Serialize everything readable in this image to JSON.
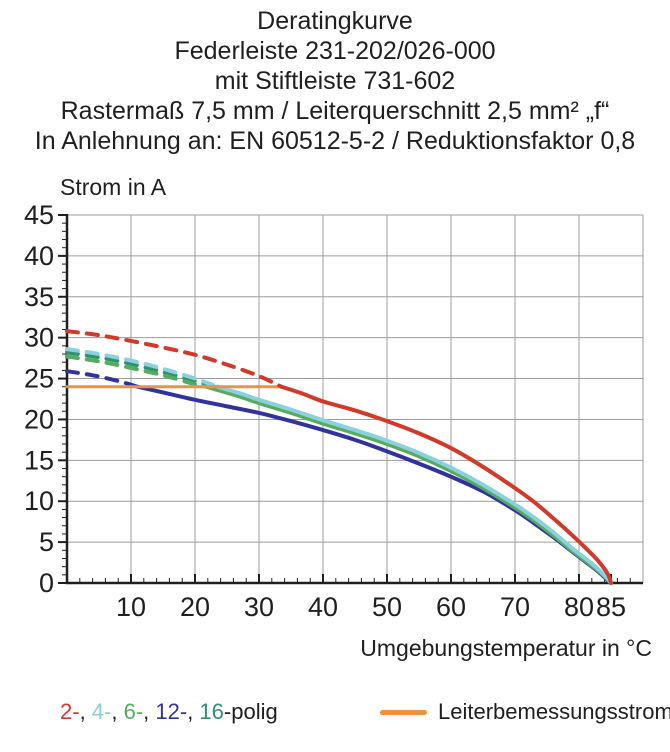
{
  "chart_data": {
    "type": "line",
    "title_lines": [
      "Deratingkurve",
      "Federleiste 231-202/026-000",
      "mit Stiftleiste 731-602",
      "Rastermaß 7,5 mm / Leiterquerschnitt 2,5 mm² „f“",
      "In Anlehnung an: EN 60512-5-2 / Reduktionsfaktor 0,8"
    ],
    "ylabel": "Strom in A",
    "xlabel": "Umgebungstemperatur in °C",
    "xlim": [
      0,
      90
    ],
    "ylim": [
      0,
      45
    ],
    "x_major_ticks": [
      10,
      20,
      30,
      40,
      50,
      60,
      70,
      80,
      85
    ],
    "y_major_ticks": [
      0,
      5,
      10,
      15,
      20,
      25,
      30,
      35,
      40,
      45
    ],
    "x_minor_step": 2,
    "y_minor_step": 1,
    "grid": true,
    "legend_position": "bottom",
    "grid_color": "#9c9c9c",
    "axis_color": "#1f1f1f",
    "series": [
      {
        "name": "12-polig",
        "color": "#32329e",
        "dashed": [
          [
            0,
            25.9
          ],
          [
            4,
            25.4
          ],
          [
            8,
            24.7
          ],
          [
            11,
            24
          ]
        ],
        "solid": [
          [
            11,
            24
          ],
          [
            15,
            23.3
          ],
          [
            20,
            22.4
          ],
          [
            25,
            21.6
          ],
          [
            30,
            20.8
          ],
          [
            35,
            19.8
          ],
          [
            40,
            18.7
          ],
          [
            45,
            17.5
          ],
          [
            50,
            16.1
          ],
          [
            55,
            14.6
          ],
          [
            60,
            13
          ],
          [
            65,
            11.2
          ],
          [
            70,
            8.9
          ],
          [
            73,
            7.3
          ],
          [
            76,
            5.6
          ],
          [
            79,
            3.8
          ],
          [
            81,
            2.6
          ],
          [
            83,
            1.4
          ],
          [
            84.5,
            0.3
          ],
          [
            85,
            0
          ]
        ]
      },
      {
        "name": "16-polig",
        "color": "#2e9170",
        "dashed": [
          [
            0,
            28.2
          ],
          [
            5,
            27.6
          ],
          [
            10,
            26.8
          ],
          [
            15,
            25.8
          ],
          [
            20,
            24.7
          ],
          [
            22.8,
            24
          ]
        ],
        "solid": [
          [
            22.8,
            24
          ],
          [
            27,
            23
          ],
          [
            30,
            22.2
          ],
          [
            35,
            21
          ],
          [
            40,
            19.7
          ],
          [
            45,
            18.5
          ],
          [
            50,
            17.2
          ],
          [
            55,
            15.7
          ],
          [
            60,
            13.9
          ],
          [
            65,
            11.8
          ],
          [
            70,
            9.4
          ],
          [
            73,
            7.8
          ],
          [
            76,
            6
          ],
          [
            79,
            4.1
          ],
          [
            81,
            2.9
          ],
          [
            83,
            1.6
          ],
          [
            84.5,
            0.4
          ],
          [
            85,
            0
          ]
        ]
      },
      {
        "name": "6-polig",
        "color": "#55ac5f",
        "dashed": [
          [
            0,
            27.7
          ],
          [
            5,
            27.1
          ],
          [
            10,
            26.3
          ],
          [
            15,
            25.4
          ],
          [
            20,
            24.3
          ],
          [
            21.8,
            24
          ]
        ],
        "solid": [
          [
            21.8,
            24
          ],
          [
            27,
            22.8
          ],
          [
            30,
            22
          ],
          [
            35,
            20.8
          ],
          [
            40,
            19.5
          ],
          [
            45,
            18.3
          ],
          [
            50,
            17
          ],
          [
            55,
            15.5
          ],
          [
            60,
            13.7
          ],
          [
            65,
            11.6
          ],
          [
            70,
            9.2
          ],
          [
            73,
            7.6
          ],
          [
            76,
            5.8
          ],
          [
            79,
            3.9
          ],
          [
            81,
            2.7
          ],
          [
            83,
            1.5
          ],
          [
            84.5,
            0.4
          ],
          [
            85,
            0
          ]
        ]
      },
      {
        "name": "4-polig",
        "color": "#8ccfdd",
        "dashed": [
          [
            0,
            28.6
          ],
          [
            5,
            28
          ],
          [
            10,
            27.2
          ],
          [
            15,
            26.2
          ],
          [
            20,
            25
          ],
          [
            23.5,
            24
          ]
        ],
        "solid": [
          [
            23.5,
            24
          ],
          [
            27,
            23.2
          ],
          [
            30,
            22.4
          ],
          [
            35,
            21.2
          ],
          [
            40,
            19.9
          ],
          [
            45,
            18.7
          ],
          [
            50,
            17.4
          ],
          [
            55,
            15.9
          ],
          [
            60,
            14.1
          ],
          [
            65,
            12
          ],
          [
            70,
            9.6
          ],
          [
            73,
            8
          ],
          [
            76,
            6.2
          ],
          [
            79,
            4.2
          ],
          [
            81,
            3
          ],
          [
            83,
            1.7
          ],
          [
            84.5,
            0.5
          ],
          [
            85,
            0
          ]
        ]
      },
      {
        "name": "Leiterbemessungsstrom",
        "color": "#f0923d",
        "width": 3,
        "solid": [
          [
            0,
            24
          ],
          [
            33.5,
            24
          ]
        ]
      },
      {
        "name": "2-polig",
        "color": "#d13a2b",
        "dashed": [
          [
            0,
            30.8
          ],
          [
            5,
            30.3
          ],
          [
            10,
            29.6
          ],
          [
            15,
            28.8
          ],
          [
            20,
            27.9
          ],
          [
            25,
            26.7
          ],
          [
            30,
            25.3
          ],
          [
            33.5,
            24
          ]
        ],
        "solid": [
          [
            33.5,
            24
          ],
          [
            37,
            23.1
          ],
          [
            40,
            22.2
          ],
          [
            45,
            21.1
          ],
          [
            50,
            19.8
          ],
          [
            55,
            18.3
          ],
          [
            60,
            16.5
          ],
          [
            65,
            14.2
          ],
          [
            70,
            11.6
          ],
          [
            73,
            9.9
          ],
          [
            76,
            7.9
          ],
          [
            79,
            5.8
          ],
          [
            81,
            4.3
          ],
          [
            83,
            2.7
          ],
          [
            84.5,
            1.1
          ],
          [
            85,
            0
          ]
        ]
      }
    ]
  },
  "legend": {
    "poles": [
      {
        "label": "2-",
        "color": "#d13a2b"
      },
      {
        "label": "4-",
        "color": "#8ccfdd"
      },
      {
        "label": "6-",
        "color": "#55ac5f"
      },
      {
        "label": "12-",
        "color": "#32329e"
      },
      {
        "label": "16",
        "color": "#2e9170"
      }
    ],
    "separator": ", ",
    "poles_suffix": "-polig",
    "rated_label": "Leiterbemessungsstrom",
    "rated_color": "#f0923d"
  }
}
